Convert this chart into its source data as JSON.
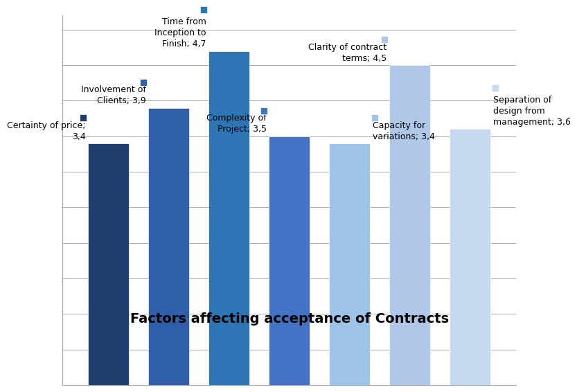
{
  "values": [
    3.4,
    3.9,
    4.7,
    3.5,
    3.4,
    4.5,
    3.6
  ],
  "bar_colors": [
    "#1F3F6E",
    "#2E5FA8",
    "#2E75B6",
    "#4472C4",
    "#9DC3E6",
    "#AFC8E8",
    "#C5D9F0"
  ],
  "title": "Factors affecting acceptance of Contracts",
  "ylim": [
    0,
    5.2
  ],
  "background_color": "#FFFFFF",
  "grid_color": "#AAAAAA",
  "title_fontsize": 14,
  "label_fontsize": 9,
  "label_configs": [
    {
      "xi": 0,
      "val": 3.4,
      "text": "Certainty of price;\n3,4",
      "ha": "right",
      "xoff": -0.38,
      "yoff": 0.04
    },
    {
      "xi": 1,
      "val": 3.9,
      "text": "Involvement of\nClients; 3,9",
      "ha": "right",
      "xoff": -0.38,
      "yoff": 0.04
    },
    {
      "xi": 2,
      "val": 4.7,
      "text": "Time from\nInception to\nFinish; 4,7",
      "ha": "right",
      "xoff": -0.38,
      "yoff": 0.04
    },
    {
      "xi": 3,
      "val": 3.5,
      "text": "Complexity of\nProject; 3,5",
      "ha": "right",
      "xoff": -0.38,
      "yoff": 0.04
    },
    {
      "xi": 4,
      "val": 3.4,
      "text": "Capacity for\nvariations; 3,4",
      "ha": "left",
      "xoff": 0.38,
      "yoff": 0.04
    },
    {
      "xi": 5,
      "val": 4.5,
      "text": "Clarity of contract\nterms; 4,5",
      "ha": "right",
      "xoff": -0.38,
      "yoff": 0.04
    },
    {
      "xi": 6,
      "val": 3.6,
      "text": "Separation of\ndesign from\nmanagement; 3,6",
      "ha": "left",
      "xoff": 0.38,
      "yoff": 0.04
    }
  ]
}
